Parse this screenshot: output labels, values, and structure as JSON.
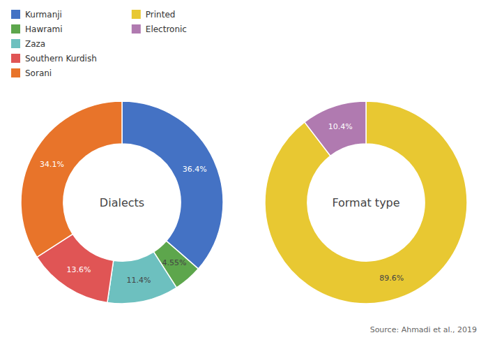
{
  "chart_data": [
    {
      "type": "donut",
      "title": "Dialects",
      "categories": [
        "Kurmanji",
        "Hawrami",
        "Zaza",
        "Southern Kurdish",
        "Sorani"
      ],
      "values": [
        36.4,
        4.55,
        11.4,
        13.6,
        34.1
      ],
      "value_labels": [
        "36.4%",
        "4.55%",
        "11.4%",
        "13.6%",
        "34.1%"
      ],
      "colors": [
        "#4472C4",
        "#5DA64C",
        "#6DC0BF",
        "#E05555",
        "#E8742A"
      ],
      "data_labels": true,
      "legend": "upper left"
    },
    {
      "type": "donut",
      "title": "Format type",
      "categories": [
        "Printed",
        "Electronic"
      ],
      "values": [
        89.6,
        10.4
      ],
      "value_labels": [
        "89.6%",
        "10.4%"
      ],
      "colors": [
        "#E8C832",
        "#B07AB0"
      ],
      "data_labels": true,
      "legend": "upper left",
      "annotations": [
        "Source: Ahmadi et al., 2019"
      ]
    }
  ]
}
